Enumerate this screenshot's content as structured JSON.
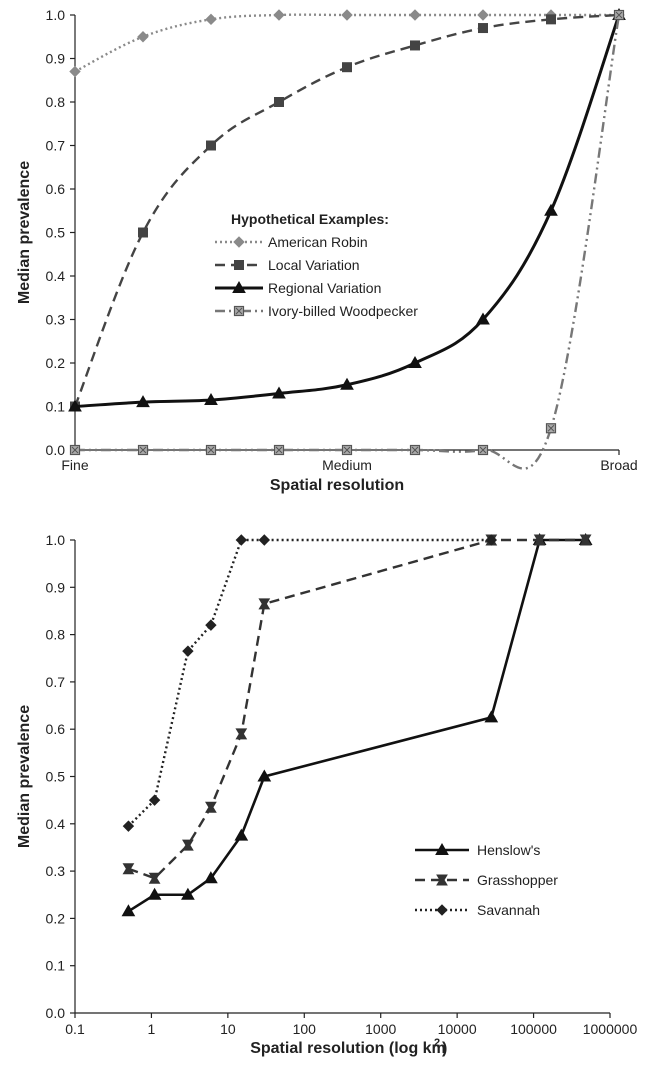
{
  "chart_data": [
    {
      "type": "line",
      "title": "",
      "xlabel": "Spatial resolution",
      "ylabel": "Median prevalence",
      "ylim": [
        0,
        1
      ],
      "yticks": [
        "0.0",
        "0.1",
        "0.2",
        "0.3",
        "0.4",
        "0.5",
        "0.6",
        "0.7",
        "0.8",
        "0.9",
        "1.0"
      ],
      "x_tick_labels": [
        "Fine",
        "Medium",
        "Broad"
      ],
      "x_tick_positions": [
        0,
        0.5,
        1
      ],
      "legend": {
        "title": "Hypothetical Examples:",
        "position": "center"
      },
      "grid": false,
      "series": [
        {
          "name": "American Robin",
          "line": "dotted",
          "marker": "diamond",
          "color": "#8a8a8a",
          "x": [
            0,
            0.125,
            0.25,
            0.375,
            0.5,
            0.625,
            0.75,
            0.875,
            1
          ],
          "y": [
            0.87,
            0.95,
            0.99,
            1.0,
            1.0,
            1.0,
            1.0,
            1.0,
            1.0
          ]
        },
        {
          "name": "Local Variation",
          "line": "dashed",
          "marker": "square",
          "color": "#444444",
          "x": [
            0,
            0.125,
            0.25,
            0.375,
            0.5,
            0.625,
            0.75,
            0.875,
            1
          ],
          "y": [
            0.1,
            0.5,
            0.7,
            0.8,
            0.88,
            0.93,
            0.97,
            0.99,
            1.0
          ]
        },
        {
          "name": "Regional Variation",
          "line": "solid",
          "marker": "triangle",
          "color": "#111111",
          "x": [
            0,
            0.125,
            0.25,
            0.375,
            0.5,
            0.625,
            0.75,
            0.875,
            1
          ],
          "y": [
            0.1,
            0.11,
            0.115,
            0.13,
            0.15,
            0.2,
            0.3,
            0.55,
            1.0
          ]
        },
        {
          "name": "Ivory-billed Woodpecker",
          "line": "dash-dot",
          "marker": "square-cross",
          "color": "#777777",
          "x": [
            0,
            0.125,
            0.25,
            0.375,
            0.5,
            0.625,
            0.75,
            0.875,
            1
          ],
          "y": [
            0.0,
            0.0,
            0.0,
            0.0,
            0.0,
            0.0,
            0.0,
            0.05,
            1.0
          ]
        }
      ]
    },
    {
      "type": "line",
      "title": "",
      "xlabel": "Spatial resolution (log km",
      "xlabel_sup": "2",
      "ylabel": "Median prevalence",
      "ylim": [
        0,
        1
      ],
      "xlim": [
        0.1,
        1000000
      ],
      "xscale": "log",
      "yticks": [
        "0.0",
        "0.1",
        "0.2",
        "0.3",
        "0.4",
        "0.5",
        "0.6",
        "0.7",
        "0.8",
        "0.9",
        "1.0"
      ],
      "xticks": [
        "0.1",
        "1",
        "10",
        "100",
        "1000",
        "10000",
        "100000",
        "1000000"
      ],
      "legend": {
        "position": "center-right"
      },
      "grid": false,
      "series": [
        {
          "name": "Henslow's",
          "line": "solid",
          "marker": "triangle",
          "color": "#111111",
          "x": [
            0.5,
            1.1,
            3,
            6,
            15,
            30,
            28000,
            120000,
            480000
          ],
          "y": [
            0.215,
            0.25,
            0.25,
            0.285,
            0.375,
            0.5,
            0.625,
            1.0,
            1.0
          ]
        },
        {
          "name": "Grasshopper",
          "line": "dashed",
          "marker": "bowtie",
          "color": "#333333",
          "x": [
            0.5,
            1.1,
            3,
            6,
            15,
            30,
            28000,
            120000,
            480000
          ],
          "y": [
            0.305,
            0.285,
            0.355,
            0.435,
            0.59,
            0.865,
            1.0,
            1.0,
            1.0
          ]
        },
        {
          "name": "Savannah",
          "line": "dotted",
          "marker": "diamond",
          "color": "#222222",
          "x": [
            0.5,
            1.1,
            3,
            6,
            15,
            30,
            28000
          ],
          "y": [
            0.395,
            0.45,
            0.765,
            0.82,
            1.0,
            1.0,
            1.0
          ]
        }
      ]
    }
  ]
}
